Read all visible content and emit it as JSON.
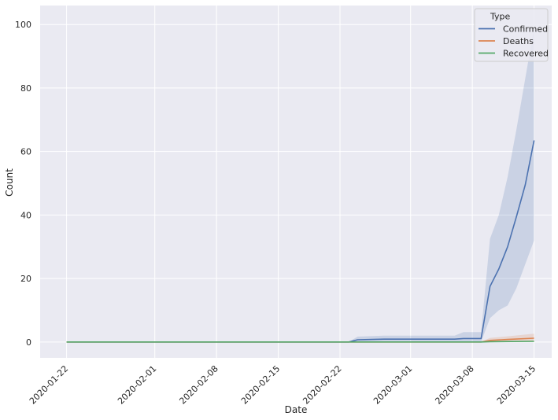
{
  "chart_data": {
    "type": "line",
    "xlabel": "Date",
    "ylabel": "Count",
    "x_ticks": [
      "2020-01-22",
      "2020-02-01",
      "2020-02-08",
      "2020-02-15",
      "2020-02-22",
      "2020-03-01",
      "2020-03-08",
      "2020-03-15"
    ],
    "y_ticks": [
      0,
      20,
      40,
      60,
      80,
      100
    ],
    "xlim": [
      "2020-01-19",
      "2020-03-17"
    ],
    "ylim": [
      -5,
      106
    ],
    "grid": true,
    "legend": {
      "title": "Type",
      "placement": "top-right"
    },
    "colors": {
      "background": "#eaeaf2",
      "grid": "#ffffff",
      "text": "#262626"
    },
    "series": [
      {
        "name": "Confirmed",
        "color": "#4c72b0",
        "x": [
          "2020-01-22",
          "2020-02-23",
          "2020-02-24",
          "2020-02-27",
          "2020-03-05",
          "2020-03-06",
          "2020-03-07",
          "2020-03-09",
          "2020-03-10",
          "2020-03-11",
          "2020-03-12",
          "2020-03-13",
          "2020-03-14",
          "2020-03-15"
        ],
        "values": [
          0,
          0,
          0.7,
          0.9,
          0.9,
          0.9,
          1.1,
          1.1,
          17.5,
          23,
          30,
          39.5,
          49.5,
          63.5
        ],
        "lower": [
          0,
          0,
          0,
          0,
          0,
          0,
          0,
          0,
          7.5,
          10,
          11.5,
          17,
          24.5,
          32
        ],
        "upper": [
          0,
          0,
          1.7,
          2.0,
          2.0,
          2.0,
          3.1,
          3.1,
          32.5,
          40,
          52,
          67,
          83,
          99
        ]
      },
      {
        "name": "Deaths",
        "color": "#dd8452",
        "x": [
          "2020-01-22",
          "2020-03-09",
          "2020-03-10",
          "2020-03-12",
          "2020-03-15"
        ],
        "values": [
          0,
          0,
          0.5,
          0.8,
          1.2
        ],
        "lower": [
          0,
          0,
          0,
          0,
          0.2
        ],
        "upper": [
          0,
          0,
          1.3,
          1.8,
          2.6
        ]
      },
      {
        "name": "Recovered",
        "color": "#55a868",
        "x": [
          "2020-01-22",
          "2020-03-09",
          "2020-03-10",
          "2020-03-15"
        ],
        "values": [
          0,
          0,
          0.1,
          0.2
        ],
        "lower": [
          0,
          0,
          0,
          0
        ],
        "upper": [
          0,
          0,
          0.3,
          0.5
        ]
      }
    ]
  }
}
